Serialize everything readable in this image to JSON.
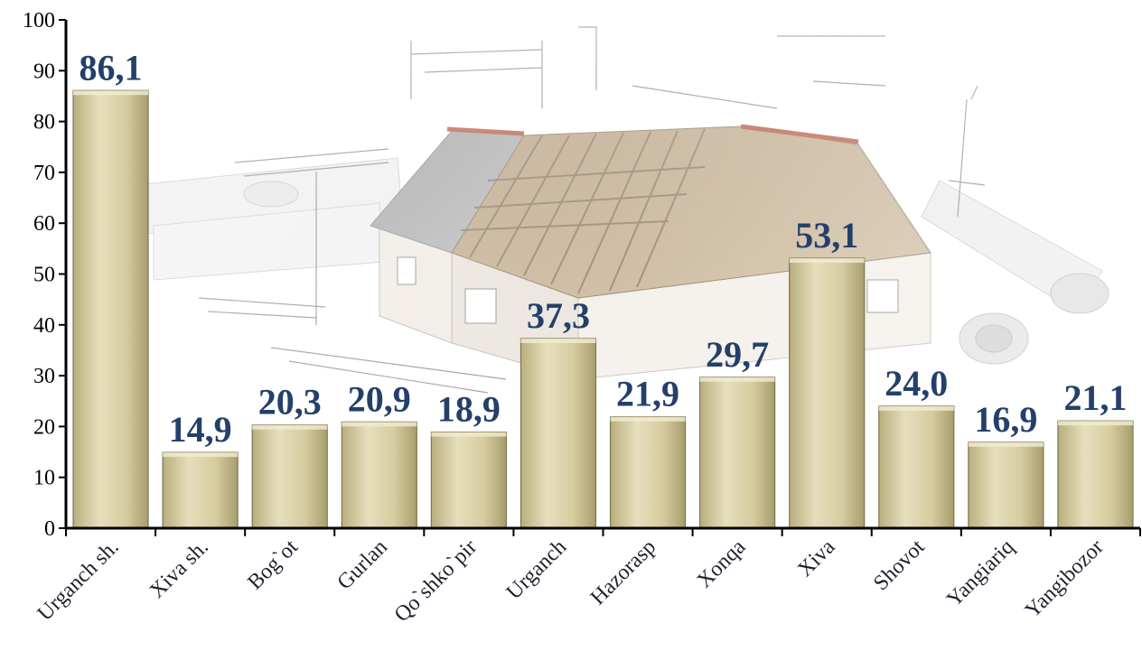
{
  "chart_data": {
    "type": "bar",
    "categories": [
      "Urganch sh.",
      "Xiva sh.",
      "Bog`ot",
      "Gurlan",
      "Qo`shko`pir",
      "Urganch",
      "Hazorasp",
      "Xonqa",
      "Xiva",
      "Shovot",
      "Yangiariq",
      "Yangibozor"
    ],
    "values": [
      86.1,
      14.9,
      20.3,
      20.9,
      18.9,
      37.3,
      21.9,
      29.7,
      53.1,
      24.0,
      16.9,
      21.1
    ],
    "value_labels": [
      "86,1",
      "14,9",
      "20,3",
      "20,9",
      "18,9",
      "37,3",
      "21,9",
      "29,7",
      "53,1",
      "24,0",
      "16,9",
      "21,1"
    ],
    "ylim": [
      0,
      100
    ],
    "yticks": [
      "0",
      "10",
      "20",
      "30",
      "40",
      "50",
      "60",
      "70",
      "80",
      "90",
      "100"
    ],
    "grid": false,
    "title": "",
    "xlabel": "",
    "ylabel": "",
    "colors": {
      "bar_fill": "#d8cfa3",
      "bar_stroke": "#7d7550",
      "data_label": "#24406a",
      "axis": "#000000"
    },
    "background": "house construction blueprint illustration"
  }
}
